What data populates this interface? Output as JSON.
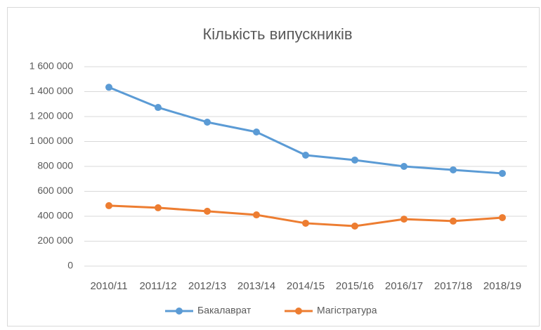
{
  "chart_data": {
    "type": "line",
    "title": "Кількість випускників",
    "categories": [
      "2010/11",
      "2011/12",
      "2012/13",
      "2013/14",
      "2014/15",
      "2015/16",
      "2016/17",
      "2017/18",
      "2018/19"
    ],
    "series": [
      {
        "name": "Бакалаврат",
        "color": "#5b9bd5",
        "values": [
          1435000,
          1273000,
          1155000,
          1076000,
          890000,
          851000,
          800000,
          772000,
          744000
        ]
      },
      {
        "name": "Магістратура",
        "color": "#ed7d31",
        "values": [
          485000,
          468000,
          440000,
          411000,
          344000,
          321000,
          377000,
          361000,
          389000
        ]
      }
    ],
    "ylim": [
      0,
      1600000
    ],
    "yticks": [
      0,
      {
        "value": 200000,
        "label": "200 000"
      },
      {
        "value": 400000,
        "label": "400 000"
      },
      {
        "value": 600000,
        "label": "600 000"
      },
      {
        "value": 800000,
        "label": "800 000"
      },
      {
        "value": 1000000,
        "label": "1 000 000"
      },
      {
        "value": 1200000,
        "label": "1 200 000"
      },
      {
        "value": 1400000,
        "label": "1 400 000"
      },
      {
        "value": 1600000,
        "label": "1 600 000"
      }
    ],
    "grid": true,
    "legend": "bottom"
  }
}
